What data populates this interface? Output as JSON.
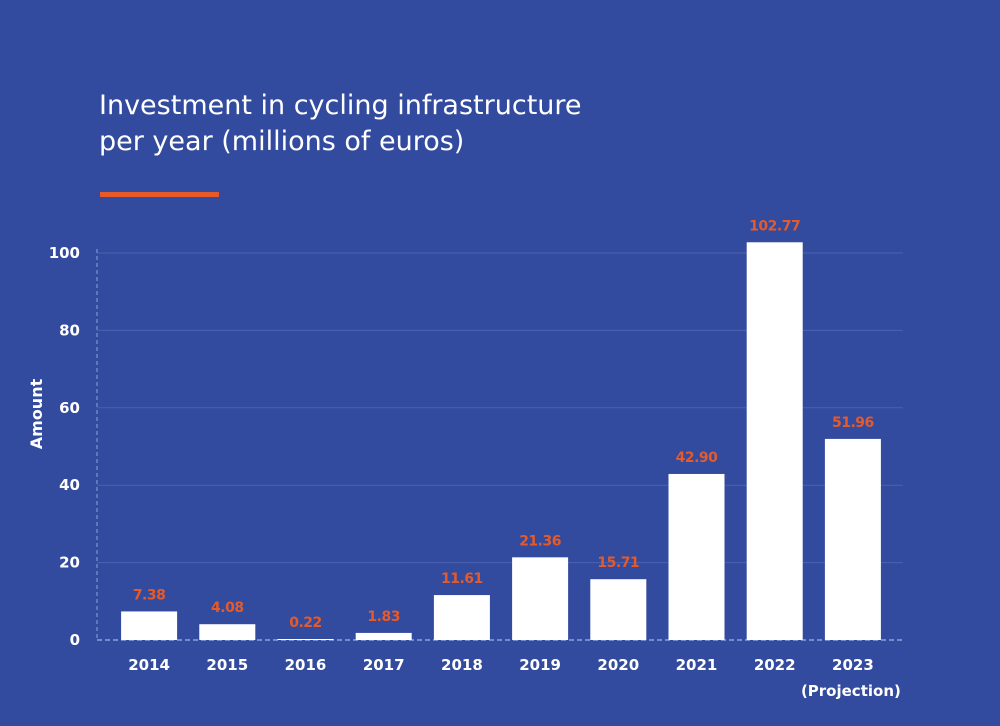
{
  "colors": {
    "background": "#334b9e",
    "bar": "#ffffff",
    "value_label": "#e65a2a",
    "accent_line": "#e65a2a",
    "text": "#ffffff",
    "gridline": "#4a62b0",
    "axis": "#8fa2d8"
  },
  "chart_data": {
    "type": "bar",
    "title": "Investment in cycling infrastructure\nper year (millions of euros)",
    "xlabel": "",
    "ylabel": "Amount",
    "categories": [
      "2014",
      "2015",
      "2016",
      "2017",
      "2018",
      "2019",
      "2020",
      "2021",
      "2022",
      "2023"
    ],
    "category_notes": [
      "",
      "",
      "",
      "",
      "",
      "",
      "",
      "",
      "",
      "(Projection)"
    ],
    "values": [
      7.38,
      4.08,
      0.22,
      1.83,
      11.61,
      21.36,
      15.71,
      42.9,
      102.77,
      51.96
    ],
    "value_labels": [
      "7.38",
      "4.08",
      "0.22",
      "1.83",
      "11.61",
      "21.36",
      "15.71",
      "42.90",
      "102.77",
      "51.96"
    ],
    "ylim": [
      0,
      100
    ],
    "yticks": [
      0,
      20,
      40,
      60,
      80,
      100
    ],
    "grid": true,
    "legend": "none"
  }
}
